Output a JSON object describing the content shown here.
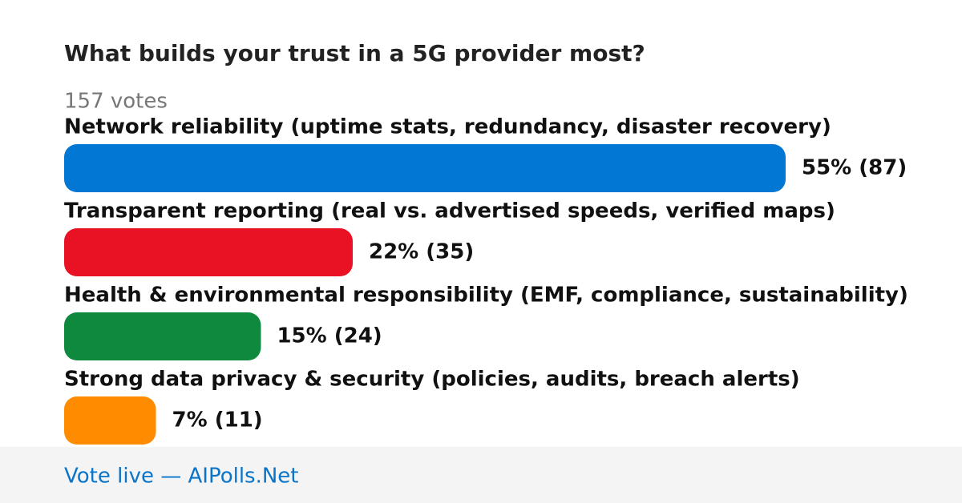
{
  "chart_data": {
    "type": "bar",
    "orientation": "horizontal",
    "title": "What builds your trust in a 5G provider most?",
    "subtitle": "157 votes",
    "categories": [
      "Network reliability (uptime stats, redundancy, disaster recovery)",
      "Transparent reporting (real vs. advertised speeds, verified maps)",
      "Health & environmental responsibility (EMF, compliance, sustainability)",
      "Strong data privacy & security (policies, audits, breach alerts)"
    ],
    "values": [
      55,
      22,
      15,
      7
    ],
    "value_labels": [
      "55% (87)",
      "22% (35)",
      "15% (24)",
      "7% (11)"
    ],
    "colors": [
      "#0377d4",
      "#e81224",
      "#0f893e",
      "#ff8c00"
    ],
    "footer": "Vote live — AIPolls.Net"
  }
}
